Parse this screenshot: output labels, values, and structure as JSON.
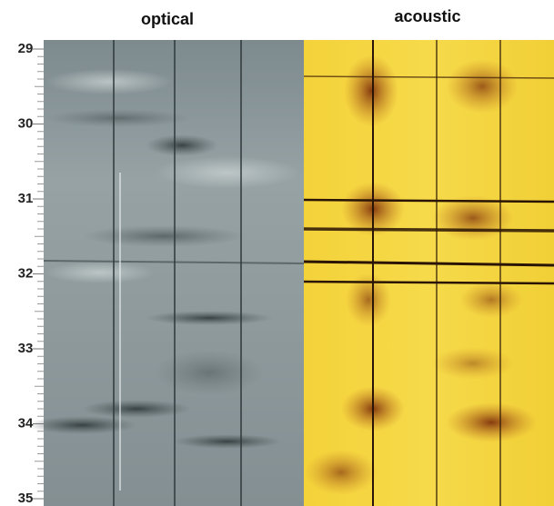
{
  "panels": [
    {
      "title": "optical"
    },
    {
      "title": "acoustic"
    }
  ],
  "depth_axis": {
    "labels": [
      29,
      30,
      31,
      32,
      33,
      34,
      35
    ]
  }
}
